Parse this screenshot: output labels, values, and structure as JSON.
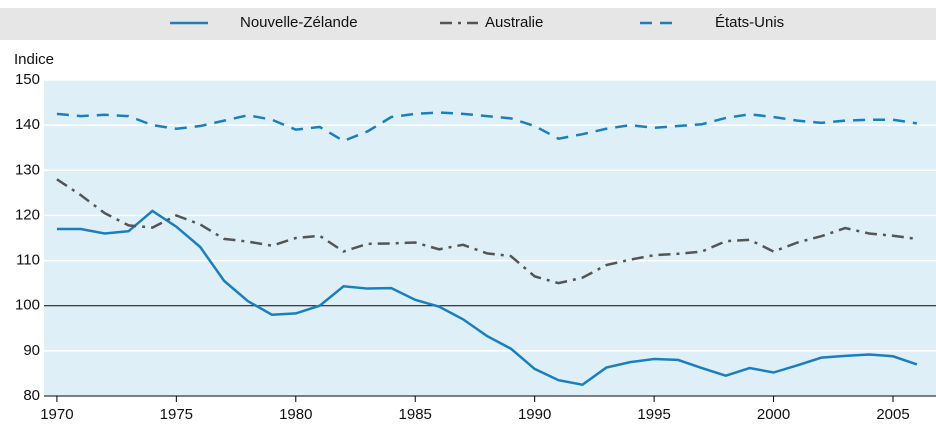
{
  "chart_data": {
    "type": "line",
    "y_label": "Indice",
    "x": [
      1970,
      1971,
      1972,
      1973,
      1974,
      1975,
      1976,
      1977,
      1978,
      1979,
      1980,
      1981,
      1982,
      1983,
      1984,
      1985,
      1986,
      1987,
      1988,
      1989,
      1990,
      1991,
      1992,
      1993,
      1994,
      1995,
      1996,
      1997,
      1998,
      1999,
      2000,
      2001,
      2002,
      2003,
      2004,
      2005,
      2006
    ],
    "series": [
      {
        "name": "Nouvelle-Zélande",
        "color": "#1a7fbf",
        "dash": "solid",
        "values": [
          117,
          117,
          116,
          116.5,
          121,
          117.5,
          113,
          105.5,
          101,
          98,
          98.3,
          100,
          104.3,
          103.8,
          103.9,
          101.3,
          99.8,
          97,
          93.3,
          90.5,
          86,
          83.5,
          82.5,
          86.3,
          87.5,
          88.2,
          88,
          86.2,
          84.5,
          86.2,
          85.2,
          86.8,
          88.5,
          88.9,
          89.2,
          88.8,
          87
        ]
      },
      {
        "name": "Australie",
        "color": "#555555",
        "dash": "dashdot",
        "values": [
          128,
          124.5,
          120.5,
          117.8,
          117.3,
          120,
          118,
          114.8,
          114.2,
          113.3,
          115,
          115.5,
          112,
          113.7,
          113.8,
          114,
          112.5,
          113.5,
          111.6,
          111,
          106.5,
          105,
          106.2,
          109,
          110.2,
          111.2,
          111.5,
          112,
          114.3,
          114.6,
          112,
          114,
          115.4,
          117.2,
          116,
          115.5,
          114.8
        ]
      },
      {
        "name": "États-Unis",
        "color": "#1a7fbf",
        "dash": "dashed",
        "values": [
          142.5,
          142,
          142.3,
          142,
          140,
          139.2,
          139.8,
          141,
          142.2,
          141.2,
          139,
          139.6,
          136.5,
          138.6,
          141.8,
          142.5,
          142.8,
          142.5,
          142,
          141.5,
          139.8,
          137,
          138,
          139.2,
          140,
          139.4,
          139.8,
          140.2,
          141.6,
          142.4,
          141.8,
          141,
          140.5,
          141,
          141.2,
          141.2,
          140.4
        ]
      }
    ],
    "xlim": [
      1969.46,
      2006.8
    ],
    "xticks": [
      1970,
      1975,
      1980,
      1985,
      1990,
      1995,
      2000,
      2005
    ],
    "ylim": [
      80,
      150
    ],
    "yticks": [
      80,
      90,
      100,
      110,
      120,
      130,
      140,
      150
    ],
    "reference_line": 100,
    "grid": true
  }
}
